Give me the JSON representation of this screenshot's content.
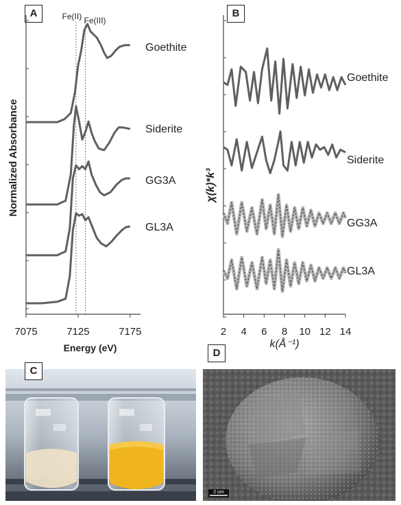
{
  "panels": {
    "a": "A",
    "b": "B",
    "c": "C",
    "d": "D"
  },
  "chart_data": [
    {
      "type": "line",
      "panel": "A",
      "xlabel": "Energy (eV)",
      "ylabel": "Normalized Absorbance",
      "xlim": [
        7075,
        7185
      ],
      "x_ticks": [
        "7075",
        "7125",
        "7175"
      ],
      "x_tick_values": [
        7075,
        7125,
        7175
      ],
      "reference_lines": [
        {
          "label": "Fe(II)",
          "x": 7123
        },
        {
          "label": "Fe(III)",
          "x": 7132
        }
      ],
      "series": [
        {
          "name": "Goethite",
          "points": [
            [
              7075,
              0.0
            ],
            [
              7090,
              0.0
            ],
            [
              7105,
              0.0
            ],
            [
              7112,
              0.04
            ],
            [
              7118,
              0.12
            ],
            [
              7122,
              0.4
            ],
            [
              7125,
              0.75
            ],
            [
              7128,
              0.95
            ],
            [
              7131,
              1.22
            ],
            [
              7134,
              1.3
            ],
            [
              7137,
              1.2
            ],
            [
              7140,
              1.16
            ],
            [
              7143,
              1.12
            ],
            [
              7147,
              1.02
            ],
            [
              7150,
              0.92
            ],
            [
              7153,
              0.85
            ],
            [
              7157,
              0.88
            ],
            [
              7161,
              0.95
            ],
            [
              7165,
              1.0
            ],
            [
              7170,
              1.02
            ],
            [
              7175,
              1.02
            ]
          ]
        },
        {
          "name": "Siderite",
          "points": [
            [
              7075,
              0.0
            ],
            [
              7090,
              0.0
            ],
            [
              7105,
              0.0
            ],
            [
              7113,
              0.05
            ],
            [
              7118,
              0.4
            ],
            [
              7121,
              1.05
            ],
            [
              7123,
              1.3
            ],
            [
              7126,
              1.1
            ],
            [
              7129,
              0.86
            ],
            [
              7132,
              0.96
            ],
            [
              7135,
              1.1
            ],
            [
              7138,
              0.95
            ],
            [
              7141,
              0.84
            ],
            [
              7145,
              0.74
            ],
            [
              7150,
              0.72
            ],
            [
              7155,
              0.82
            ],
            [
              7160,
              0.95
            ],
            [
              7164,
              1.02
            ],
            [
              7168,
              1.02
            ],
            [
              7172,
              1.01
            ],
            [
              7175,
              1.0
            ]
          ]
        },
        {
          "name": "GG3A",
          "points": [
            [
              7075,
              0.0
            ],
            [
              7090,
              0.0
            ],
            [
              7105,
              0.0
            ],
            [
              7113,
              0.05
            ],
            [
              7117,
              0.35
            ],
            [
              7120,
              1.0
            ],
            [
              7123,
              1.17
            ],
            [
              7126,
              1.12
            ],
            [
              7129,
              1.16
            ],
            [
              7132,
              1.12
            ],
            [
              7135,
              1.22
            ],
            [
              7138,
              1.05
            ],
            [
              7142,
              0.92
            ],
            [
              7146,
              0.82
            ],
            [
              7150,
              0.78
            ],
            [
              7156,
              0.82
            ],
            [
              7162,
              0.92
            ],
            [
              7167,
              0.98
            ],
            [
              7171,
              1.0
            ],
            [
              7175,
              1.0
            ]
          ]
        },
        {
          "name": "GL3A",
          "points": [
            [
              7075,
              0.0
            ],
            [
              7090,
              0.0
            ],
            [
              7105,
              0.02
            ],
            [
              7113,
              0.06
            ],
            [
              7117,
              0.35
            ],
            [
              7120,
              0.95
            ],
            [
              7123,
              1.17
            ],
            [
              7126,
              1.14
            ],
            [
              7129,
              1.16
            ],
            [
              7132,
              1.08
            ],
            [
              7135,
              1.12
            ],
            [
              7139,
              0.98
            ],
            [
              7143,
              0.85
            ],
            [
              7147,
              0.78
            ],
            [
              7152,
              0.74
            ],
            [
              7157,
              0.8
            ],
            [
              7162,
              0.88
            ],
            [
              7167,
              0.95
            ],
            [
              7171,
              0.99
            ],
            [
              7175,
              1.0
            ]
          ]
        }
      ]
    },
    {
      "type": "line",
      "panel": "B",
      "xlabel": "k(Å⁻¹)",
      "ylabel": "χ(k)*k³",
      "xlim": [
        2,
        14
      ],
      "x_ticks": [
        "2",
        "4",
        "6",
        "8",
        "10",
        "12",
        "14"
      ],
      "x_tick_values": [
        2,
        4,
        6,
        8,
        10,
        12,
        14
      ],
      "series": [
        {
          "name": "Goethite",
          "points": [
            [
              2.0,
              0.0
            ],
            [
              2.4,
              -0.1
            ],
            [
              2.8,
              0.5
            ],
            [
              3.2,
              -0.9
            ],
            [
              3.7,
              0.6
            ],
            [
              4.2,
              0.4
            ],
            [
              4.6,
              -0.7
            ],
            [
              5.0,
              0.4
            ],
            [
              5.4,
              -0.8
            ],
            [
              5.8,
              0.5
            ],
            [
              6.3,
              1.3
            ],
            [
              6.7,
              -0.7
            ],
            [
              7.1,
              0.8
            ],
            [
              7.5,
              -1.2
            ],
            [
              7.9,
              0.9
            ],
            [
              8.3,
              -1.0
            ],
            [
              8.8,
              0.7
            ],
            [
              9.2,
              -0.6
            ],
            [
              9.6,
              0.6
            ],
            [
              10.0,
              -0.5
            ],
            [
              10.4,
              0.5
            ],
            [
              10.8,
              -0.4
            ],
            [
              11.2,
              0.3
            ],
            [
              11.6,
              -0.2
            ],
            [
              12.0,
              0.3
            ],
            [
              12.4,
              -0.3
            ],
            [
              12.8,
              0.2
            ],
            [
              13.2,
              -0.3
            ],
            [
              13.6,
              0.2
            ],
            [
              14.0,
              -0.1
            ]
          ]
        },
        {
          "name": "Siderite",
          "points": [
            [
              2.0,
              0.2
            ],
            [
              2.4,
              0.1
            ],
            [
              2.8,
              -0.5
            ],
            [
              3.3,
              0.5
            ],
            [
              3.8,
              -0.7
            ],
            [
              4.3,
              0.4
            ],
            [
              4.8,
              -0.6
            ],
            [
              5.3,
              0.0
            ],
            [
              5.8,
              0.6
            ],
            [
              6.2,
              -0.3
            ],
            [
              6.6,
              -0.8
            ],
            [
              7.0,
              -0.3
            ],
            [
              7.4,
              0.4
            ],
            [
              7.6,
              0.8
            ],
            [
              7.9,
              -0.5
            ],
            [
              8.3,
              -0.7
            ],
            [
              8.7,
              0.4
            ],
            [
              9.1,
              -0.5
            ],
            [
              9.5,
              0.4
            ],
            [
              9.9,
              -0.4
            ],
            [
              10.3,
              0.4
            ],
            [
              10.7,
              -0.2
            ],
            [
              11.1,
              0.3
            ],
            [
              11.5,
              0.1
            ],
            [
              11.9,
              0.2
            ],
            [
              12.3,
              -0.1
            ],
            [
              12.7,
              0.3
            ],
            [
              13.1,
              -0.2
            ],
            [
              13.5,
              0.1
            ],
            [
              14.0,
              0.0
            ]
          ]
        },
        {
          "name": "GG3A",
          "points": [
            [
              2.0,
              0.2
            ],
            [
              2.4,
              -0.2
            ],
            [
              2.8,
              0.6
            ],
            [
              3.3,
              -0.6
            ],
            [
              3.8,
              0.6
            ],
            [
              4.3,
              -0.5
            ],
            [
              4.8,
              0.4
            ],
            [
              5.3,
              -0.6
            ],
            [
              5.8,
              0.7
            ],
            [
              6.2,
              -0.4
            ],
            [
              6.6,
              0.5
            ],
            [
              7.0,
              -0.6
            ],
            [
              7.4,
              0.9
            ],
            [
              7.8,
              -0.7
            ],
            [
              8.2,
              0.5
            ],
            [
              8.6,
              -0.5
            ],
            [
              9.0,
              0.4
            ],
            [
              9.4,
              -0.4
            ],
            [
              9.8,
              0.4
            ],
            [
              10.2,
              -0.3
            ],
            [
              10.6,
              0.3
            ],
            [
              11.0,
              -0.3
            ],
            [
              11.4,
              0.2
            ],
            [
              11.8,
              -0.2
            ],
            [
              12.2,
              0.2
            ],
            [
              12.6,
              -0.2
            ],
            [
              13.0,
              0.2
            ],
            [
              13.4,
              -0.2
            ],
            [
              13.8,
              0.2
            ],
            [
              14.0,
              0.0
            ]
          ]
        },
        {
          "name": "GL3A",
          "points": [
            [
              2.0,
              0.1
            ],
            [
              2.4,
              -0.2
            ],
            [
              2.8,
              0.5
            ],
            [
              3.3,
              -0.6
            ],
            [
              3.8,
              0.6
            ],
            [
              4.3,
              -0.5
            ],
            [
              4.8,
              0.4
            ],
            [
              5.3,
              -0.6
            ],
            [
              5.8,
              0.6
            ],
            [
              6.2,
              -0.4
            ],
            [
              6.6,
              0.5
            ],
            [
              7.0,
              -0.6
            ],
            [
              7.4,
              0.9
            ],
            [
              7.8,
              -0.7
            ],
            [
              8.2,
              0.5
            ],
            [
              8.6,
              -0.5
            ],
            [
              9.0,
              0.4
            ],
            [
              9.4,
              -0.4
            ],
            [
              9.8,
              0.4
            ],
            [
              10.2,
              -0.3
            ],
            [
              10.6,
              0.3
            ],
            [
              11.0,
              -0.3
            ],
            [
              11.4,
              0.2
            ],
            [
              11.8,
              -0.2
            ],
            [
              12.2,
              0.2
            ],
            [
              12.6,
              -0.2
            ],
            [
              13.0,
              0.2
            ],
            [
              13.4,
              -0.2
            ],
            [
              13.8,
              0.2
            ],
            [
              14.0,
              0.0
            ]
          ]
        }
      ]
    }
  ],
  "photo_d": {
    "scale_bar": "2 um"
  },
  "colors": {
    "curve": "#5f5f5f",
    "fit": "#b8b8b8",
    "yellow_suspension": "#f0b51e",
    "clear_suspension": "#efe2c8"
  }
}
